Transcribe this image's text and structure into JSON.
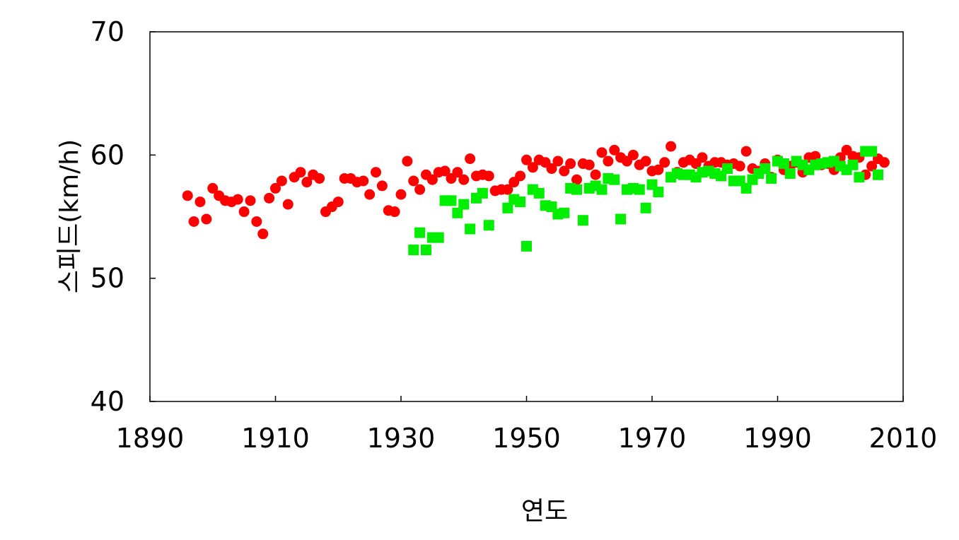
{
  "chart_data": {
    "type": "scatter",
    "title": "",
    "xlabel": "연도",
    "ylabel": "스피드(km/h)",
    "xlim": [
      1890,
      2010
    ],
    "ylim": [
      40,
      70
    ],
    "x_ticks": [
      "1890",
      "1910",
      "1930",
      "1950",
      "1970",
      "1990",
      "2010"
    ],
    "y_ticks": [
      "40",
      "50",
      "60",
      "70"
    ],
    "grid": false,
    "legend": "none",
    "series": [
      {
        "marker": "circle",
        "color": "#ff0000",
        "points": [
          [
            1896,
            56.7
          ],
          [
            1897,
            54.6
          ],
          [
            1898,
            56.2
          ],
          [
            1899,
            54.8
          ],
          [
            1900,
            57.3
          ],
          [
            1901,
            56.7
          ],
          [
            1902,
            56.3
          ],
          [
            1903,
            56.2
          ],
          [
            1904,
            56.4
          ],
          [
            1905,
            55.4
          ],
          [
            1906,
            56.3
          ],
          [
            1907,
            54.6
          ],
          [
            1908,
            53.6
          ],
          [
            1909,
            56.5
          ],
          [
            1910,
            57.3
          ],
          [
            1911,
            57.9
          ],
          [
            1912,
            56.0
          ],
          [
            1913,
            58.2
          ],
          [
            1914,
            58.6
          ],
          [
            1915,
            57.8
          ],
          [
            1916,
            58.4
          ],
          [
            1917,
            58.1
          ],
          [
            1918,
            55.4
          ],
          [
            1919,
            55.8
          ],
          [
            1920,
            56.2
          ],
          [
            1921,
            58.1
          ],
          [
            1922,
            58.1
          ],
          [
            1923,
            57.8
          ],
          [
            1924,
            57.9
          ],
          [
            1925,
            56.8
          ],
          [
            1926,
            58.6
          ],
          [
            1927,
            57.5
          ],
          [
            1928,
            55.5
          ],
          [
            1929,
            55.4
          ],
          [
            1930,
            56.8
          ],
          [
            1931,
            59.5
          ],
          [
            1932,
            57.9
          ],
          [
            1933,
            57.2
          ],
          [
            1934,
            58.4
          ],
          [
            1935,
            58.0
          ],
          [
            1936,
            58.6
          ],
          [
            1937,
            58.7
          ],
          [
            1938,
            58.1
          ],
          [
            1939,
            58.6
          ],
          [
            1940,
            58.0
          ],
          [
            1941,
            59.7
          ],
          [
            1942,
            58.3
          ],
          [
            1943,
            58.4
          ],
          [
            1944,
            58.3
          ],
          [
            1945,
            57.1
          ],
          [
            1946,
            57.2
          ],
          [
            1947,
            57.2
          ],
          [
            1948,
            57.8
          ],
          [
            1949,
            58.3
          ],
          [
            1950,
            59.6
          ],
          [
            1951,
            59.0
          ],
          [
            1952,
            59.6
          ],
          [
            1953,
            59.4
          ],
          [
            1954,
            58.9
          ],
          [
            1955,
            59.5
          ],
          [
            1956,
            58.7
          ],
          [
            1957,
            59.3
          ],
          [
            1958,
            58.0
          ],
          [
            1959,
            59.3
          ],
          [
            1960,
            59.2
          ],
          [
            1961,
            58.4
          ],
          [
            1962,
            60.2
          ],
          [
            1963,
            59.5
          ],
          [
            1964,
            60.4
          ],
          [
            1965,
            59.8
          ],
          [
            1966,
            59.5
          ],
          [
            1967,
            60.0
          ],
          [
            1968,
            59.2
          ],
          [
            1969,
            59.5
          ],
          [
            1970,
            58.7
          ],
          [
            1971,
            58.8
          ],
          [
            1972,
            59.4
          ],
          [
            1973,
            60.7
          ],
          [
            1974,
            58.6
          ],
          [
            1975,
            59.4
          ],
          [
            1976,
            59.6
          ],
          [
            1977,
            59.3
          ],
          [
            1978,
            59.8
          ],
          [
            1979,
            59.1
          ],
          [
            1980,
            59.4
          ],
          [
            1981,
            59.4
          ],
          [
            1982,
            59.2
          ],
          [
            1983,
            59.3
          ],
          [
            1984,
            59.1
          ],
          [
            1985,
            60.3
          ],
          [
            1986,
            58.9
          ],
          [
            1987,
            58.7
          ],
          [
            1988,
            59.3
          ],
          [
            1989,
            58.2
          ],
          [
            1990,
            59.6
          ],
          [
            1991,
            58.8
          ],
          [
            1992,
            59.1
          ],
          [
            1993,
            59.4
          ],
          [
            1994,
            58.6
          ],
          [
            1995,
            59.8
          ],
          [
            1996,
            59.9
          ],
          [
            1997,
            59.2
          ],
          [
            1998,
            59.3
          ],
          [
            1999,
            58.8
          ],
          [
            2000,
            59.8
          ],
          [
            2001,
            60.4
          ],
          [
            2002,
            59.9
          ],
          [
            2003,
            59.8
          ],
          [
            2004,
            58.4
          ],
          [
            2005,
            59.1
          ],
          [
            2006,
            59.7
          ],
          [
            2007,
            59.4
          ]
        ]
      },
      {
        "marker": "square",
        "color": "#00ee00",
        "points": [
          [
            1932,
            52.3
          ],
          [
            1933,
            53.7
          ],
          [
            1934,
            52.3
          ],
          [
            1935,
            53.3
          ],
          [
            1936,
            53.3
          ],
          [
            1937,
            56.3
          ],
          [
            1938,
            56.3
          ],
          [
            1939,
            55.3
          ],
          [
            1940,
            56.0
          ],
          [
            1941,
            54.0
          ],
          [
            1942,
            56.5
          ],
          [
            1943,
            56.9
          ],
          [
            1944,
            54.3
          ],
          [
            1947,
            55.7
          ],
          [
            1948,
            56.4
          ],
          [
            1949,
            56.2
          ],
          [
            1950,
            52.6
          ],
          [
            1951,
            57.2
          ],
          [
            1952,
            56.9
          ],
          [
            1953,
            55.9
          ],
          [
            1954,
            55.8
          ],
          [
            1955,
            55.2
          ],
          [
            1956,
            55.3
          ],
          [
            1957,
            57.3
          ],
          [
            1958,
            57.2
          ],
          [
            1959,
            54.7
          ],
          [
            1960,
            57.3
          ],
          [
            1961,
            57.5
          ],
          [
            1962,
            57.2
          ],
          [
            1963,
            58.1
          ],
          [
            1964,
            58.0
          ],
          [
            1965,
            54.8
          ],
          [
            1966,
            57.2
          ],
          [
            1967,
            57.3
          ],
          [
            1968,
            57.2
          ],
          [
            1969,
            55.7
          ],
          [
            1970,
            57.6
          ],
          [
            1971,
            57.0
          ],
          [
            1973,
            58.2
          ],
          [
            1974,
            58.5
          ],
          [
            1975,
            58.4
          ],
          [
            1976,
            58.4
          ],
          [
            1977,
            58.2
          ],
          [
            1978,
            58.6
          ],
          [
            1979,
            58.7
          ],
          [
            1980,
            58.5
          ],
          [
            1981,
            58.3
          ],
          [
            1982,
            58.9
          ],
          [
            1983,
            57.9
          ],
          [
            1984,
            57.9
          ],
          [
            1985,
            57.3
          ],
          [
            1986,
            58.0
          ],
          [
            1987,
            58.5
          ],
          [
            1988,
            58.9
          ],
          [
            1989,
            58.1
          ],
          [
            1990,
            59.5
          ],
          [
            1991,
            59.3
          ],
          [
            1992,
            58.5
          ],
          [
            1993,
            59.5
          ],
          [
            1994,
            59.2
          ],
          [
            1995,
            58.8
          ],
          [
            1996,
            59.2
          ],
          [
            1997,
            59.3
          ],
          [
            1998,
            59.4
          ],
          [
            1999,
            59.5
          ],
          [
            2000,
            59.1
          ],
          [
            2001,
            58.8
          ],
          [
            2002,
            59.2
          ],
          [
            2003,
            58.2
          ],
          [
            2004,
            60.3
          ],
          [
            2005,
            60.3
          ],
          [
            2006,
            58.4
          ]
        ]
      }
    ]
  }
}
